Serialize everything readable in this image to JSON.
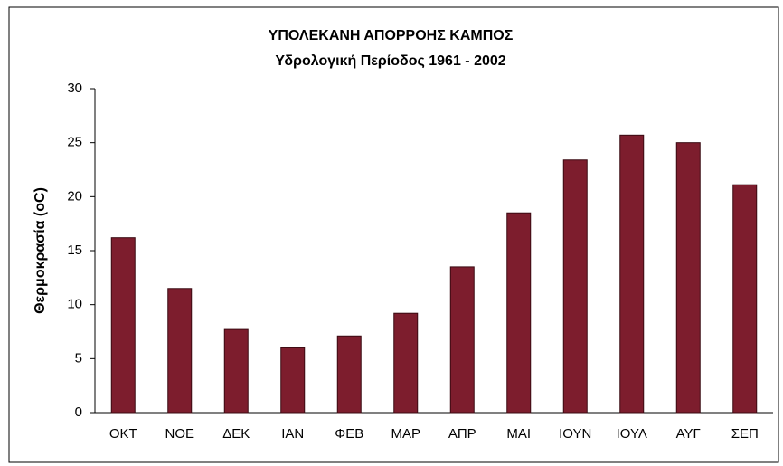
{
  "chart_data": {
    "type": "bar",
    "title": "ΥΠΟΛΕΚΑΝΗ ΑΠΟΡΡΟΗΣ ΚΑΜΠΟΣ",
    "subtitle": "Υδρολογική Περίοδος 1961 - 2002",
    "y_label": "Θερμοκρασία (oC)",
    "categories": [
      "ΟΚΤ",
      "ΝΟΕ",
      "ΔΕΚ",
      "ΙΑΝ",
      "ΦΕΒ",
      "ΜΑΡ",
      "ΑΠΡ",
      "ΜΑΙ",
      "ΙΟΥΝ",
      "ΙΟΥΛ",
      "ΑΥΓ",
      "ΣΕΠ"
    ],
    "values": [
      16.2,
      11.5,
      7.7,
      6.0,
      7.1,
      9.2,
      13.5,
      18.5,
      23.4,
      25.7,
      25.0,
      21.1
    ],
    "color": "#7d1d2d",
    "ylim": [
      0,
      30
    ],
    "yticks": [
      0,
      5,
      10,
      15,
      20,
      25,
      30
    ],
    "grid": false
  }
}
